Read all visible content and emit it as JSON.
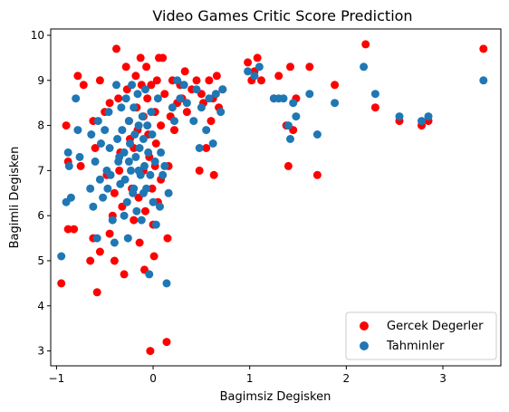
{
  "chart_data": {
    "type": "scatter",
    "title": "Video Games Critic Score Prediction",
    "xlabel": "Bagimsiz Degisken",
    "ylabel": "Bagimli Degisken",
    "xlim": [
      -1.06,
      3.6
    ],
    "ylim": [
      2.67,
      10.14
    ],
    "xticks": [
      -1,
      0,
      1,
      2,
      3
    ],
    "yticks": [
      3,
      4,
      5,
      6,
      7,
      8,
      9,
      10
    ],
    "grid": false,
    "legend_position": "lower-right",
    "series": [
      {
        "name": "Gercek Degerler",
        "color": "#ff0000",
        "points": [
          [
            -0.95,
            4.5
          ],
          [
            -0.88,
            5.7
          ],
          [
            -0.82,
            5.7
          ],
          [
            -0.9,
            8.0
          ],
          [
            -0.88,
            7.2
          ],
          [
            -0.78,
            9.1
          ],
          [
            -0.75,
            7.1
          ],
          [
            -0.72,
            8.9
          ],
          [
            -0.65,
            5.0
          ],
          [
            -0.62,
            5.5
          ],
          [
            -0.58,
            4.3
          ],
          [
            -0.55,
            5.2
          ],
          [
            -0.6,
            7.5
          ],
          [
            -0.62,
            8.1
          ],
          [
            -0.55,
            9.0
          ],
          [
            -0.5,
            8.3
          ],
          [
            -0.48,
            6.9
          ],
          [
            -0.45,
            5.6
          ],
          [
            -0.42,
            6.0
          ],
          [
            -0.4,
            6.5
          ],
          [
            -0.4,
            5.0
          ],
          [
            -0.38,
            9.7
          ],
          [
            -0.36,
            8.6
          ],
          [
            -0.34,
            7.4
          ],
          [
            -0.32,
            6.2
          ],
          [
            -0.3,
            4.7
          ],
          [
            -0.28,
            9.3
          ],
          [
            -0.27,
            8.8
          ],
          [
            -0.25,
            8.1
          ],
          [
            -0.24,
            7.7
          ],
          [
            -0.22,
            6.6
          ],
          [
            -0.2,
            5.9
          ],
          [
            -0.18,
            9.1
          ],
          [
            -0.17,
            8.4
          ],
          [
            -0.16,
            7.9
          ],
          [
            -0.15,
            6.4
          ],
          [
            -0.14,
            5.4
          ],
          [
            -0.13,
            9.5
          ],
          [
            -0.12,
            8.9
          ],
          [
            -0.1,
            8.2
          ],
          [
            -0.1,
            7.0
          ],
          [
            -0.09,
            4.8
          ],
          [
            -0.08,
            6.1
          ],
          [
            -0.07,
            9.3
          ],
          [
            -0.06,
            8.6
          ],
          [
            -0.05,
            7.8
          ],
          [
            -0.04,
            7.3
          ],
          [
            -0.03,
            3.0
          ],
          [
            -0.02,
            8.9
          ],
          [
            -0.01,
            6.6
          ],
          [
            0.0,
            5.8
          ],
          [
            0.01,
            5.1
          ],
          [
            0.02,
            8.3
          ],
          [
            0.03,
            7.6
          ],
          [
            0.04,
            9.0
          ],
          [
            0.05,
            6.3
          ],
          [
            0.06,
            9.5
          ],
          [
            0.08,
            8.0
          ],
          [
            0.1,
            9.5
          ],
          [
            0.12,
            8.7
          ],
          [
            0.14,
            3.2
          ],
          [
            0.15,
            5.5
          ],
          [
            0.16,
            7.1
          ],
          [
            0.18,
            8.2
          ],
          [
            0.2,
            9.0
          ],
          [
            0.22,
            7.9
          ],
          [
            0.25,
            8.5
          ],
          [
            0.28,
            8.9
          ],
          [
            0.3,
            8.6
          ],
          [
            0.33,
            9.2
          ],
          [
            0.35,
            8.3
          ],
          [
            0.4,
            8.8
          ],
          [
            0.45,
            9.0
          ],
          [
            0.48,
            7.0
          ],
          [
            0.5,
            8.7
          ],
          [
            0.52,
            8.5
          ],
          [
            0.55,
            7.5
          ],
          [
            0.58,
            9.0
          ],
          [
            0.6,
            8.1
          ],
          [
            0.62,
            8.6
          ],
          [
            0.63,
            6.9
          ],
          [
            0.66,
            9.1
          ],
          [
            0.68,
            8.4
          ],
          [
            0.72,
            8.8
          ],
          [
            0.98,
            9.4
          ],
          [
            1.02,
            9.0
          ],
          [
            1.05,
            9.2
          ],
          [
            1.08,
            9.5
          ],
          [
            1.12,
            9.0
          ],
          [
            1.25,
            8.6
          ],
          [
            1.3,
            9.1
          ],
          [
            1.38,
            8.0
          ],
          [
            1.4,
            7.1
          ],
          [
            1.42,
            9.3
          ],
          [
            1.45,
            7.9
          ],
          [
            1.48,
            8.6
          ],
          [
            1.62,
            9.3
          ],
          [
            1.7,
            6.9
          ],
          [
            1.88,
            8.9
          ],
          [
            2.2,
            9.8
          ],
          [
            2.3,
            8.4
          ],
          [
            2.55,
            8.1
          ],
          [
            2.78,
            8.0
          ],
          [
            2.85,
            8.1
          ],
          [
            3.42,
            9.7
          ],
          [
            -0.2,
            7.5
          ],
          [
            -0.35,
            7.0
          ],
          [
            0.08,
            6.8
          ],
          [
            -0.45,
            8.5
          ],
          [
            0.02,
            7.1
          ]
        ]
      },
      {
        "name": "Tahminler",
        "color": "#1f77b4",
        "points": [
          [
            -0.95,
            5.1
          ],
          [
            -0.9,
            6.3
          ],
          [
            -0.88,
            7.4
          ],
          [
            -0.87,
            7.1
          ],
          [
            -0.85,
            6.4
          ],
          [
            -0.8,
            8.6
          ],
          [
            -0.78,
            7.9
          ],
          [
            -0.76,
            7.3
          ],
          [
            -0.65,
            6.6
          ],
          [
            -0.64,
            7.8
          ],
          [
            -0.62,
            6.2
          ],
          [
            -0.6,
            7.2
          ],
          [
            -0.58,
            5.5
          ],
          [
            -0.57,
            8.1
          ],
          [
            -0.55,
            6.8
          ],
          [
            -0.54,
            7.6
          ],
          [
            -0.52,
            6.4
          ],
          [
            -0.5,
            7.9
          ],
          [
            -0.48,
            7.0
          ],
          [
            -0.47,
            6.6
          ],
          [
            -0.46,
            8.3
          ],
          [
            -0.45,
            7.5
          ],
          [
            -0.44,
            6.9
          ],
          [
            -0.42,
            5.9
          ],
          [
            -0.4,
            5.4
          ],
          [
            -0.38,
            8.9
          ],
          [
            -0.37,
            7.7
          ],
          [
            -0.36,
            7.2
          ],
          [
            -0.34,
            6.7
          ],
          [
            -0.33,
            8.4
          ],
          [
            -0.32,
            7.9
          ],
          [
            -0.3,
            7.4
          ],
          [
            -0.29,
            6.8
          ],
          [
            -0.28,
            8.6
          ],
          [
            -0.27,
            6.3
          ],
          [
            -0.26,
            5.5
          ],
          [
            -0.25,
            8.1
          ],
          [
            -0.24,
            7.6
          ],
          [
            -0.23,
            7.0
          ],
          [
            -0.22,
            8.9
          ],
          [
            -0.21,
            6.5
          ],
          [
            -0.2,
            8.4
          ],
          [
            -0.19,
            7.8
          ],
          [
            -0.18,
            7.3
          ],
          [
            -0.17,
            6.1
          ],
          [
            -0.16,
            8.7
          ],
          [
            -0.15,
            8.0
          ],
          [
            -0.14,
            7.5
          ],
          [
            -0.13,
            6.9
          ],
          [
            -0.12,
            5.9
          ],
          [
            -0.11,
            8.2
          ],
          [
            -0.1,
            7.7
          ],
          [
            -0.09,
            7.1
          ],
          [
            -0.08,
            8.8
          ],
          [
            -0.07,
            6.6
          ],
          [
            -0.06,
            8.0
          ],
          [
            -0.05,
            7.4
          ],
          [
            -0.04,
            4.7
          ],
          [
            -0.03,
            6.9
          ],
          [
            -0.02,
            8.3
          ],
          [
            -0.01,
            7.8
          ],
          [
            0.0,
            6.3
          ],
          [
            0.02,
            7.2
          ],
          [
            0.03,
            5.8
          ],
          [
            0.05,
            8.6
          ],
          [
            0.07,
            6.2
          ],
          [
            0.1,
            6.9
          ],
          [
            0.12,
            7.1
          ],
          [
            0.14,
            4.5
          ],
          [
            0.16,
            6.5
          ],
          [
            0.2,
            8.4
          ],
          [
            0.22,
            8.1
          ],
          [
            0.25,
            9.0
          ],
          [
            0.28,
            8.6
          ],
          [
            0.32,
            8.9
          ],
          [
            0.35,
            8.5
          ],
          [
            0.42,
            8.1
          ],
          [
            0.45,
            8.8
          ],
          [
            0.48,
            7.5
          ],
          [
            0.5,
            8.4
          ],
          [
            0.55,
            7.9
          ],
          [
            0.58,
            8.6
          ],
          [
            0.62,
            7.6
          ],
          [
            0.65,
            8.7
          ],
          [
            0.7,
            8.3
          ],
          [
            0.72,
            8.8
          ],
          [
            0.98,
            9.2
          ],
          [
            1.05,
            9.1
          ],
          [
            1.1,
            9.3
          ],
          [
            1.25,
            8.6
          ],
          [
            1.3,
            8.6
          ],
          [
            1.35,
            8.6
          ],
          [
            1.4,
            8.0
          ],
          [
            1.42,
            7.7
          ],
          [
            1.45,
            8.5
          ],
          [
            1.48,
            8.2
          ],
          [
            1.62,
            8.7
          ],
          [
            1.7,
            7.8
          ],
          [
            1.88,
            8.5
          ],
          [
            2.18,
            9.3
          ],
          [
            2.3,
            8.7
          ],
          [
            2.55,
            8.2
          ],
          [
            2.78,
            8.1
          ],
          [
            2.85,
            8.2
          ],
          [
            3.42,
            9.0
          ],
          [
            -0.3,
            6.0
          ],
          [
            -0.2,
            6.6
          ],
          [
            0.08,
            7.4
          ],
          [
            -0.35,
            7.3
          ],
          [
            -0.1,
            6.5
          ],
          [
            -0.25,
            7.2
          ],
          [
            -0.15,
            7.0
          ]
        ]
      }
    ]
  }
}
